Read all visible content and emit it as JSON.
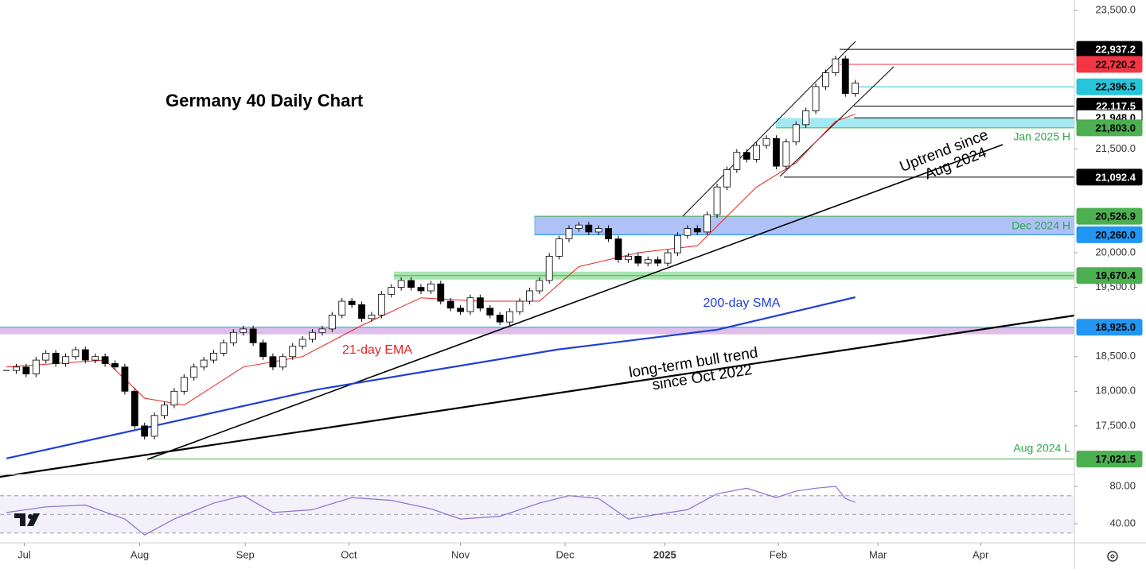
{
  "chart_data": {
    "type": "candlestick",
    "title": "Germany 40 Daily Chart",
    "xlim": [
      -0.65,
      108.2
    ],
    "ylim": [
      16810,
      23650
    ],
    "xticks": [
      {
        "value": 1.8,
        "label": "Jul"
      },
      {
        "value": 13.5,
        "label": "Aug"
      },
      {
        "value": 24.2,
        "label": "Sep"
      },
      {
        "value": 34.7,
        "label": "Oct"
      },
      {
        "value": 46,
        "label": "Nov"
      },
      {
        "value": 56.6,
        "label": "Dec"
      },
      {
        "value": 66.7,
        "label": "2025"
      },
      {
        "value": 78.2,
        "label": "Feb"
      },
      {
        "value": 88.3,
        "label": "Mar"
      },
      {
        "value": 98.7,
        "label": "Apr"
      }
    ],
    "yticks": [
      {
        "value": 23500,
        "label": "23,500.0"
      },
      {
        "value": 21500,
        "label": "21,500.0"
      },
      {
        "value": 20000,
        "label": "20,000.0"
      },
      {
        "value": 19500,
        "label": "19,500.0"
      },
      {
        "value": 18500,
        "label": "18,500.0"
      },
      {
        "value": 18000,
        "label": "18,000.0"
      },
      {
        "value": 17500,
        "label": "17,500.0"
      }
    ],
    "candles": {
      "up_color": "#ffffff",
      "down_color": "#000000",
      "values": [
        18300,
        18350,
        18250,
        18450,
        18550,
        18400,
        18500,
        18600,
        18450,
        18500,
        18400,
        18350,
        18000,
        17500,
        17350,
        17650,
        17800,
        18000,
        18200,
        18350,
        18450,
        18550,
        18700,
        18850,
        18900,
        18700,
        18500,
        18350,
        18500,
        18650,
        18750,
        18850,
        18900,
        19100,
        19300,
        19250,
        19050,
        19100,
        19400,
        19500,
        19600,
        19500,
        19450,
        19550,
        19300,
        19200,
        19150,
        19350,
        19200,
        19100,
        19000,
        19150,
        19300,
        19450,
        19600,
        19950,
        20200,
        20350,
        20400,
        20300,
        20350,
        20200,
        19900,
        19950,
        19850,
        19900,
        19850,
        20000,
        20250,
        20350,
        20300,
        20550,
        20950,
        21200,
        21450,
        21350,
        21550,
        21650,
        21250,
        21600,
        21850,
        22050,
        22400,
        22600,
        22800,
        22300,
        22450
      ]
    },
    "sma": {
      "name": "200-day SMA",
      "color": "#1f3fd6",
      "x": [
        0,
        13.5,
        31.6,
        55.8,
        72,
        86
      ],
      "values": [
        17030,
        17454,
        18028,
        18601,
        18888,
        19358
      ]
    },
    "ema": {
      "name": "21-day EMA",
      "color": "#e8231f",
      "x": [
        0,
        10,
        14,
        18,
        24,
        30,
        36,
        42,
        48,
        54,
        58,
        64,
        70,
        76,
        80,
        84,
        86
      ],
      "values": [
        18350,
        18450,
        17900,
        17800,
        18350,
        18500,
        18950,
        19350,
        19300,
        19300,
        19800,
        20000,
        20100,
        20950,
        21300,
        21900,
        22000
      ]
    },
    "levels": [
      {
        "value": 22937.2,
        "label": "22,937.2",
        "color": "#000000"
      },
      {
        "value": 22720.2,
        "label": "22,720.2",
        "color": "#f23645"
      },
      {
        "value": 22396.5,
        "label": "22,396.5",
        "color": "#26c6da"
      },
      {
        "value": 22117.5,
        "label": "22,117.5",
        "color": "#000000"
      },
      {
        "value": 21948.0,
        "label": "21,948.0",
        "color": "#ffffff"
      },
      {
        "value": 21803.0,
        "label": "21,803.0",
        "color": "#4caf50"
      },
      {
        "value": 21092.4,
        "label": "21,092.4",
        "color": "#000000"
      },
      {
        "value": 20526.9,
        "label": "20,526.9",
        "color": "#4caf50"
      },
      {
        "value": 20260.0,
        "label": "20,260.0",
        "color": "#2196f3"
      },
      {
        "value": 19670.4,
        "label": "19,670.4",
        "color": "#4caf50"
      },
      {
        "value": 18925.0,
        "label": "18,925.0",
        "color": "#2196f3"
      },
      {
        "value": 17021.5,
        "label": "17,021.5",
        "color": "#4caf50"
      }
    ],
    "annotations": [
      {
        "text": "Jan 2025 H",
        "color": "#2aa84a"
      },
      {
        "text": "Dec 2024 H",
        "color": "#2aa84a"
      },
      {
        "text": "Aug 2024 L",
        "color": "#2aa84a"
      },
      {
        "text": "200-day SMA",
        "color": "#1f3fd6"
      },
      {
        "text": "21-day EMA",
        "color": "#e8231f"
      },
      {
        "lines": [
          "Uptrend since",
          "Aug 2024"
        ],
        "color": "#000000"
      },
      {
        "lines": [
          "long-term bull trend",
          "since Oct 2022"
        ],
        "color": "#000000"
      }
    ],
    "rsi": {
      "color": "#8e6fd0",
      "ylim": [
        20.4,
        91.9
      ],
      "yticks": [
        {
          "value": 80,
          "label": "80.00"
        },
        {
          "value": 40,
          "label": "40.00"
        }
      ],
      "levels": [
        30,
        50,
        70
      ],
      "x": [
        0,
        4,
        8,
        12,
        14,
        17,
        21,
        24,
        27,
        31,
        35,
        39,
        43,
        46,
        50,
        54,
        57,
        60,
        63,
        66,
        69,
        72,
        75,
        78,
        80,
        82,
        84,
        85,
        86
      ],
      "values": [
        52,
        58,
        60,
        45,
        28,
        45,
        62,
        70,
        52,
        55,
        68,
        65,
        56,
        45,
        48,
        62,
        70,
        67,
        45,
        50,
        55,
        72,
        78,
        68,
        75,
        78,
        80,
        67,
        63
      ]
    }
  }
}
